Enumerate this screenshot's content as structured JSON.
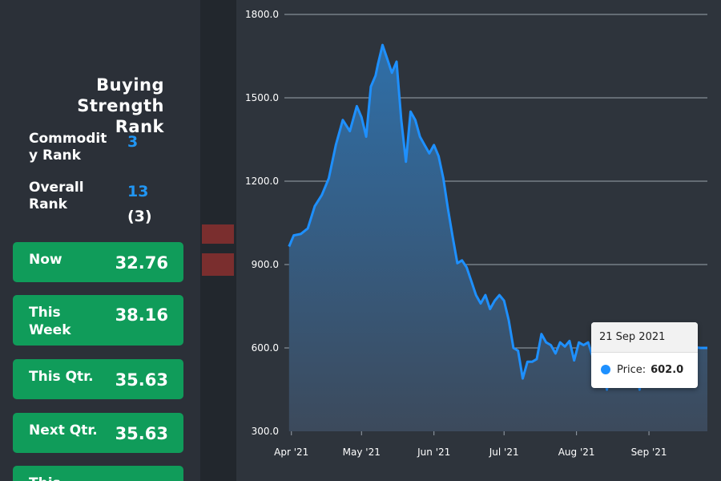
{
  "panel": {
    "title": "Buying Strength Rank",
    "commodity_rank": {
      "label": "Commodit\ny Rank",
      "value": "3"
    },
    "overall_rank": {
      "label": "Overall\nRank",
      "value": "13",
      "sub": "(3)"
    },
    "cards": [
      {
        "label": "Now",
        "value": "32.76"
      },
      {
        "label": "This Week",
        "value": "38.16"
      },
      {
        "label": "This Qtr.",
        "value": "35.63"
      },
      {
        "label": "Next Qtr.",
        "value": "35.63"
      },
      {
        "label": "This",
        "value": ""
      }
    ]
  },
  "colors": {
    "line": "#1e90ff",
    "fill_top": "#2f6fa8",
    "fill_bottom": "#3c4a5c",
    "card": "#109c5a",
    "accent": "#2196f3"
  },
  "tooltip": {
    "date": "21 Sep 2021",
    "label": "Price:",
    "value": "602.0"
  },
  "chart_data": {
    "type": "area",
    "title": "",
    "xlabel": "",
    "ylabel": "",
    "ylim": [
      300,
      1800
    ],
    "yticks": [
      "300.0",
      "600.0",
      "900.0",
      "1200.0",
      "1500.0",
      "1800.0"
    ],
    "xticks": [
      "Apr '21",
      "May '21",
      "Jun '21",
      "Jul '21",
      "Aug '21",
      "Sep '21"
    ],
    "xtick_dates": [
      "2021-04-01",
      "2021-05-01",
      "2021-06-01",
      "2021-07-01",
      "2021-08-01",
      "2021-09-01"
    ],
    "grid": true,
    "series": [
      {
        "x": [
          "2021-03-31",
          "2021-04-02",
          "2021-04-05",
          "2021-04-08",
          "2021-04-11",
          "2021-04-14",
          "2021-04-17",
          "2021-04-20",
          "2021-04-23",
          "2021-04-26",
          "2021-04-29",
          "2021-05-01",
          "2021-05-03",
          "2021-05-05",
          "2021-05-07",
          "2021-05-08",
          "2021-05-10",
          "2021-05-12",
          "2021-05-14",
          "2021-05-16",
          "2021-05-18",
          "2021-05-20",
          "2021-05-22",
          "2021-05-24",
          "2021-05-26",
          "2021-05-28",
          "2021-05-30",
          "2021-06-01",
          "2021-06-03",
          "2021-06-05",
          "2021-06-07",
          "2021-06-09",
          "2021-06-11",
          "2021-06-13",
          "2021-06-15",
          "2021-06-17",
          "2021-06-19",
          "2021-06-21",
          "2021-06-23",
          "2021-06-25",
          "2021-06-27",
          "2021-06-29",
          "2021-07-01",
          "2021-07-03",
          "2021-07-05",
          "2021-07-07",
          "2021-07-09",
          "2021-07-11",
          "2021-07-13",
          "2021-07-15",
          "2021-07-17",
          "2021-07-19",
          "2021-07-21",
          "2021-07-23",
          "2021-07-25",
          "2021-07-27",
          "2021-07-29",
          "2021-07-31",
          "2021-08-02",
          "2021-08-04",
          "2021-08-06",
          "2021-08-08",
          "2021-08-10",
          "2021-08-12",
          "2021-08-14",
          "2021-08-16",
          "2021-08-18",
          "2021-08-20",
          "2021-08-22",
          "2021-08-24",
          "2021-08-26",
          "2021-08-28",
          "2021-08-30",
          "2021-09-01",
          "2021-09-03",
          "2021-09-05",
          "2021-09-07",
          "2021-09-09",
          "2021-09-11",
          "2021-09-13",
          "2021-09-15",
          "2021-09-17",
          "2021-09-19",
          "2021-09-21",
          "2021-09-23"
        ],
        "values": [
          965,
          1005,
          1010,
          1030,
          1110,
          1150,
          1210,
          1330,
          1420,
          1380,
          1470,
          1430,
          1360,
          1540,
          1580,
          1620,
          1690,
          1640,
          1590,
          1630,
          1420,
          1270,
          1450,
          1420,
          1360,
          1330,
          1300,
          1330,
          1290,
          1210,
          1100,
          1000,
          905,
          915,
          890,
          840,
          790,
          760,
          790,
          740,
          770,
          790,
          770,
          700,
          600,
          590,
          490,
          550,
          550,
          560,
          650,
          620,
          610,
          580,
          620,
          605,
          625,
          555,
          620,
          610,
          620,
          565,
          540,
          570,
          450,
          545,
          600,
          580,
          620,
          590,
          570,
          450,
          600,
          610,
          600,
          580,
          460,
          605,
          600,
          590,
          620,
          590,
          620,
          602,
          600
        ]
      }
    ]
  }
}
